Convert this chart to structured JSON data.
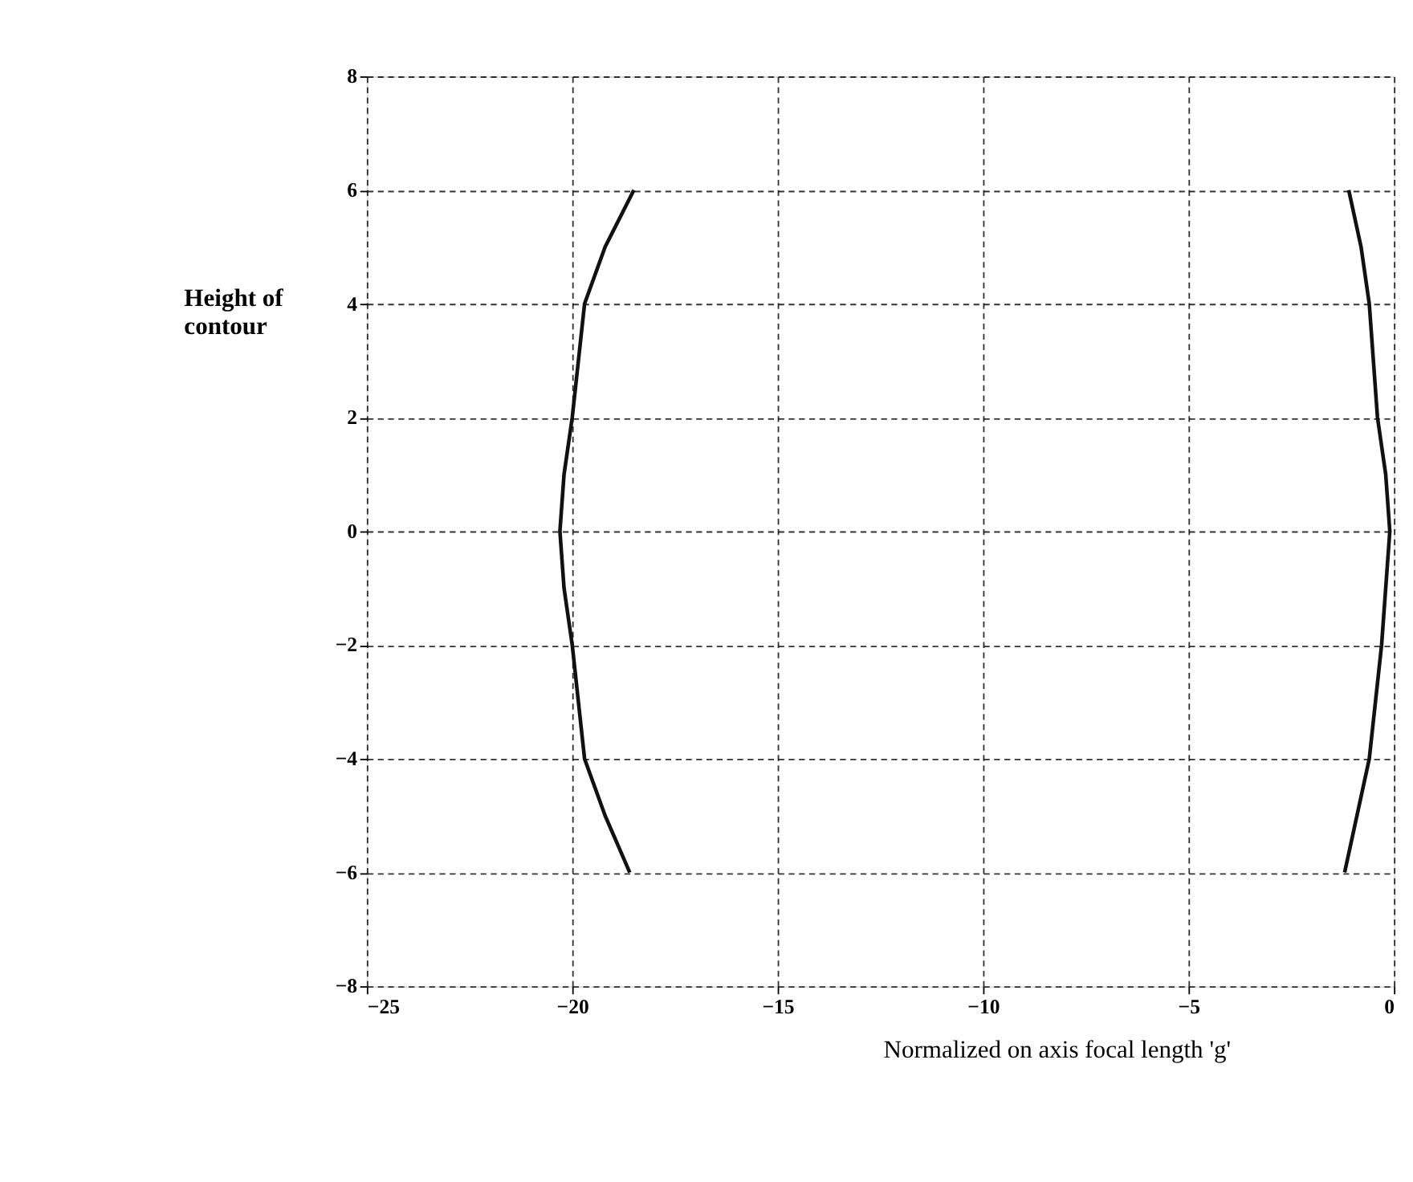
{
  "chart_data": {
    "type": "line",
    "xlabel": "Normalized on axis focal length 'g'",
    "ylabel": "Height of contour",
    "xlim": [
      -25,
      0
    ],
    "xticks": [
      -25,
      -20,
      -15,
      -10,
      -5,
      0
    ],
    "ylim": [
      -8,
      8
    ],
    "yticks": [
      -8,
      -6,
      -4,
      -2,
      0,
      2,
      4,
      6,
      8
    ],
    "grid": true,
    "line_style": "solid",
    "marker": "none",
    "series": [
      {
        "color": "#111111",
        "x": [
          -18.5,
          -19.2,
          -19.7,
          -20.0,
          -20.2,
          -20.3,
          -20.2,
          -20.0,
          -19.7,
          -19.2,
          -18.6
        ],
        "values": [
          6,
          5,
          4,
          2,
          1,
          0,
          -1,
          -2,
          -4,
          -5,
          -6
        ]
      },
      {
        "color": "#111111",
        "x": [
          -1.1,
          -0.8,
          -0.6,
          -0.4,
          -0.2,
          -0.1,
          -0.2,
          -0.3,
          -0.6,
          -0.9,
          -1.2
        ],
        "values": [
          6,
          5,
          4,
          2,
          1,
          0,
          -1,
          -2,
          -4,
          -5,
          -6
        ]
      }
    ]
  }
}
